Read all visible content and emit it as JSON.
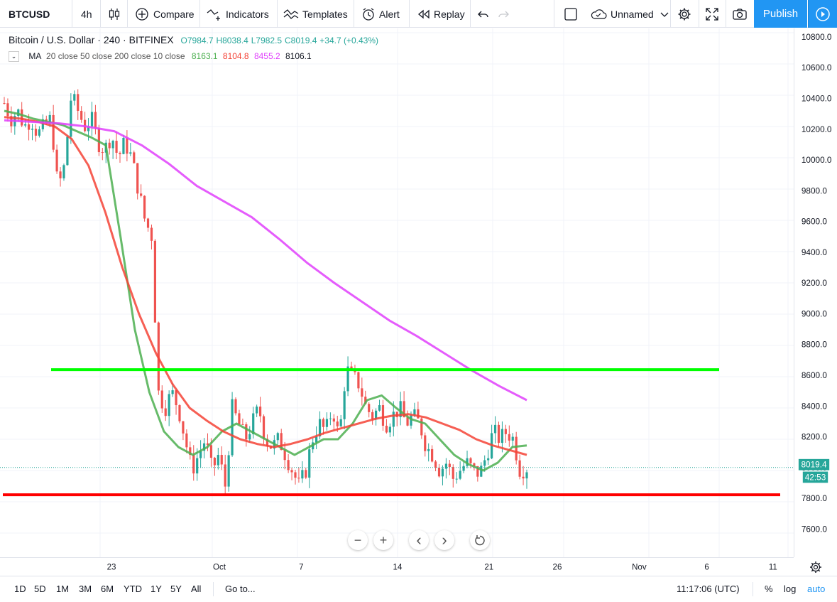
{
  "toolbar": {
    "symbol": "BTCUSD",
    "interval": "4h",
    "compare": "Compare",
    "indicators": "Indicators",
    "templates": "Templates",
    "alert": "Alert",
    "replay": "Replay",
    "layout_name": "Unnamed",
    "publish": "Publish"
  },
  "legend": {
    "title": "Bitcoin / U.S. Dollar · 240 · BITFINEX",
    "open": "O7984.7",
    "high": "H8038.4",
    "low": "L7982.5",
    "close": "C8019.4",
    "change": "+34.7 (+0.43%)",
    "ma_name": "MA",
    "ma_params": "20 close 50 close 200 close 10 close",
    "ma_values": [
      "8163.1",
      "8104.8",
      "8455.2",
      "8106.1"
    ]
  },
  "colors": {
    "accent": "#2196f3",
    "up": "#26a69a",
    "down": "#ef5350",
    "ma20": "#4caf50",
    "ma50": "#f44336",
    "ma200": "#e040fb",
    "ma10": "#131722",
    "resistance": "#00ff00",
    "support": "#ff0000"
  },
  "chart_data": {
    "type": "candlestick",
    "title": "Bitcoin / U.S. Dollar · 240 · BITFINEX",
    "ylim": [
      7450,
      10850
    ],
    "y_ticks": [
      "10800.0",
      "10600.0",
      "10400.0",
      "10200.0",
      "10000.0",
      "9800.0",
      "9600.0",
      "9400.0",
      "9200.0",
      "9000.0",
      "8800.0",
      "8600.0",
      "8400.0",
      "8200.0",
      "8000.0",
      "7800.0",
      "7600.0"
    ],
    "x_ticks": [
      "23",
      "Oct",
      "7",
      "14",
      "21",
      "26",
      "Nov",
      "6",
      "11"
    ],
    "current_price": "8019.4",
    "countdown": "42:53",
    "horizontal_lines": [
      {
        "name": "resistance",
        "price": 8645
      },
      {
        "name": "support",
        "price": 7845
      }
    ],
    "candle_close_path": [
      10350,
      10250,
      10300,
      10200,
      10250,
      10150,
      10200,
      10250,
      9800,
      9950,
      10400,
      10300,
      10200,
      10250,
      10100,
      10050,
      10150,
      10000,
      10100,
      10000,
      9800,
      9600,
      9500,
      8500,
      8400,
      8500,
      8400,
      8200,
      8000,
      8100,
      8200,
      8000,
      8100,
      7900,
      8400,
      8300,
      8200,
      8300,
      8400,
      8200,
      8150,
      8200,
      8100,
      8000,
      7900,
      8000,
      8200,
      8300,
      8250,
      8400,
      8200,
      8650,
      8600,
      8550,
      8400,
      8350,
      8400,
      8300,
      8350,
      8400,
      8300,
      8350,
      8300,
      8150,
      8100,
      8000,
      8050,
      7950,
      8000,
      8050,
      8000,
      7980,
      8100,
      8250,
      8200,
      8250,
      8200,
      8000,
      8019
    ],
    "series": [
      {
        "name": "MA 20",
        "values": [
          10300,
          10280,
          10250,
          10230,
          10210,
          10170,
          10130,
          10080,
          9500,
          8900,
          8500,
          8250,
          8150,
          8100,
          8150,
          8250,
          8300,
          8250,
          8200,
          8150,
          8100,
          8150,
          8200,
          8200,
          8300,
          8450,
          8480,
          8400,
          8330,
          8300,
          8200,
          8100,
          8040,
          8000,
          8050,
          8150,
          8160
        ]
      },
      {
        "name": "MA 50",
        "values": [
          10260,
          10250,
          10230,
          10200,
          10120,
          9950,
          9650,
          9300,
          9000,
          8750,
          8550,
          8400,
          8320,
          8250,
          8200,
          8170,
          8150,
          8170,
          8200,
          8240,
          8270,
          8300,
          8330,
          8350,
          8360,
          8340,
          8300,
          8260,
          8200,
          8160,
          8130,
          8100
        ]
      },
      {
        "name": "MA 200",
        "values": [
          10240,
          10230,
          10220,
          10200,
          10170,
          10080,
          9960,
          9820,
          9720,
          9620,
          9480,
          9330,
          9200,
          9080,
          8960,
          8860,
          8750,
          8640,
          8540,
          8450
        ]
      }
    ]
  },
  "nav_controls": {
    "zoom_out": "−",
    "zoom_in": "+",
    "scroll_left": "‹",
    "scroll_right": "›"
  },
  "bottom_bar": {
    "ranges": [
      "1D",
      "5D",
      "1M",
      "3M",
      "6M",
      "YTD",
      "1Y",
      "5Y",
      "All"
    ],
    "goto": "Go to...",
    "clock": "11:17:06 (UTC)",
    "percent": "%",
    "log": "log",
    "auto": "auto"
  }
}
